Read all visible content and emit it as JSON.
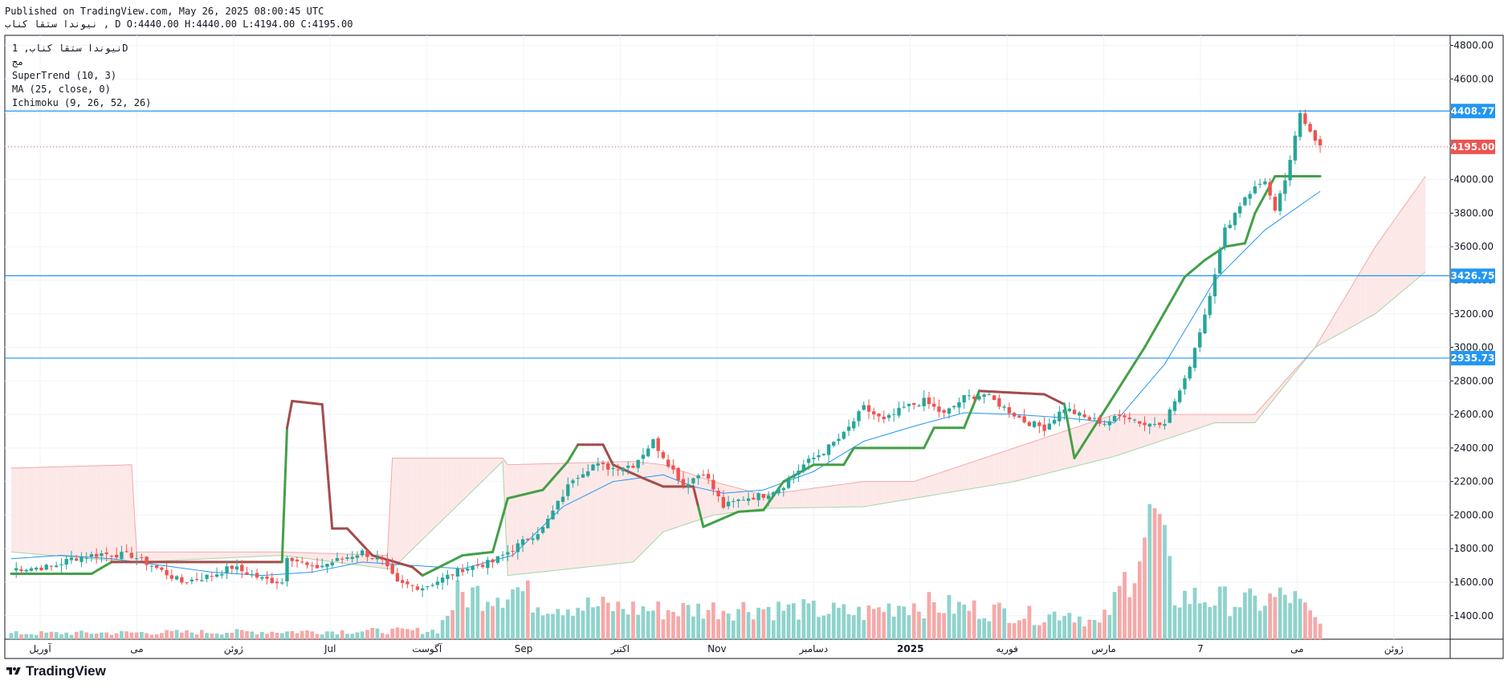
{
  "header": {
    "published": "Published on TradingView.com, May 26, 2025 08:00:45 UTC",
    "ohlc_line": "نیوندا ستقا کناب , D O:4440.00 H:4440.00 L:4194.00 C:4195.00"
  },
  "legend": {
    "symbol": "نیوندا ستقا کناب, 1D",
    "exchange": "مج",
    "supertrend": "SuperTrend (10, 3)",
    "ma": "MA (25, close, 0)",
    "ichimoku": "Ichimoku (9, 26, 52, 26)"
  },
  "brand": {
    "name": "TradingView"
  },
  "colors": {
    "up": "#26a69a",
    "down": "#ef5350",
    "supertrend_up": "#43a047",
    "supertrend_down": "#a34c4c",
    "ma": "#2196f3",
    "hline": "#2196f3",
    "cloud_up": "#e8f5e9",
    "cloud_down": "#fde8e8"
  },
  "chart_data": {
    "type": "candlestick",
    "ylim": [
      1260,
      4860
    ],
    "y_ticks": [
      1400,
      1600,
      1800,
      2000,
      2200,
      2400,
      2600,
      2800,
      3000,
      3200,
      3400,
      3600,
      3800,
      4000,
      4200,
      4400,
      4600,
      4800
    ],
    "x_labels": [
      "آوریل",
      "می",
      "ژوئن",
      "Jul",
      "آگوست",
      "Sep",
      "اکتبر",
      "Nov",
      "دسامبر",
      "2025",
      "فوریه",
      "مارس",
      "7",
      "می",
      "ژوئن"
    ],
    "horizontal_lines": [
      {
        "value": 4408.77,
        "label": "4408.77"
      },
      {
        "value": 3426.75,
        "label": "3426.75"
      },
      {
        "value": 2935.73,
        "label": "2935.73"
      }
    ],
    "last_price": {
      "value": 4195.0,
      "label": "4195.00"
    },
    "close_anchors": [
      [
        0,
        1680
      ],
      [
        8,
        1690
      ],
      [
        12,
        1740
      ],
      [
        18,
        1770
      ],
      [
        24,
        1760
      ],
      [
        28,
        1700
      ],
      [
        34,
        1600
      ],
      [
        40,
        1640
      ],
      [
        44,
        1690
      ],
      [
        50,
        1620
      ],
      [
        54,
        1600
      ],
      [
        55,
        1760
      ],
      [
        60,
        1680
      ],
      [
        64,
        1720
      ],
      [
        70,
        1780
      ],
      [
        74,
        1720
      ],
      [
        77,
        1590
      ],
      [
        82,
        1570
      ],
      [
        86,
        1620
      ],
      [
        90,
        1680
      ],
      [
        96,
        1720
      ],
      [
        100,
        1800
      ],
      [
        106,
        1920
      ],
      [
        112,
        2220
      ],
      [
        116,
        2300
      ],
      [
        120,
        2280
      ],
      [
        124,
        2300
      ],
      [
        128,
        2440
      ],
      [
        134,
        2180
      ],
      [
        138,
        2260
      ],
      [
        142,
        2050
      ],
      [
        146,
        2100
      ],
      [
        150,
        2120
      ],
      [
        154,
        2180
      ],
      [
        158,
        2300
      ],
      [
        162,
        2380
      ],
      [
        166,
        2480
      ],
      [
        170,
        2640
      ],
      [
        174,
        2560
      ],
      [
        178,
        2640
      ],
      [
        182,
        2680
      ],
      [
        186,
        2600
      ],
      [
        190,
        2700
      ],
      [
        194,
        2720
      ],
      [
        198,
        2640
      ],
      [
        202,
        2560
      ],
      [
        206,
        2520
      ],
      [
        210,
        2640
      ],
      [
        214,
        2580
      ],
      [
        218,
        2550
      ],
      [
        222,
        2600
      ],
      [
        226,
        2540
      ],
      [
        230,
        2560
      ],
      [
        234,
        2800
      ],
      [
        238,
        3200
      ],
      [
        242,
        3700
      ],
      [
        246,
        3900
      ],
      [
        250,
        4000
      ],
      [
        252,
        3800
      ],
      [
        255,
        4100
      ],
      [
        257,
        4400
      ],
      [
        261,
        4195
      ]
    ],
    "cloud_anchors": [
      [
        0,
        2280,
        1780
      ],
      [
        24,
        2300,
        1720
      ],
      [
        25,
        1780,
        1720
      ],
      [
        54,
        1780,
        1760
      ],
      [
        75,
        1760,
        1680
      ],
      [
        76,
        2340,
        1680
      ],
      [
        98,
        2340,
        2320
      ],
      [
        99,
        2300,
        1640
      ],
      [
        124,
        2320,
        1720
      ],
      [
        130,
        2300,
        1900
      ],
      [
        140,
        2200,
        2000
      ],
      [
        150,
        2120,
        2040
      ],
      [
        170,
        2200,
        2050
      ],
      [
        180,
        2200,
        2100
      ],
      [
        200,
        2400,
        2200
      ],
      [
        220,
        2600,
        2350
      ],
      [
        240,
        2600,
        2550
      ],
      [
        248,
        2600,
        2550
      ],
      [
        260,
        3000,
        3000
      ],
      [
        272,
        3600,
        3200
      ],
      [
        282,
        4020,
        3450
      ]
    ],
    "supertrend_anchors": [
      [
        0,
        1650
      ],
      [
        16,
        1650
      ],
      [
        20,
        1720
      ],
      [
        54,
        1720
      ],
      [
        55,
        2520
      ],
      [
        56,
        2680
      ],
      [
        62,
        2660
      ],
      [
        64,
        1920
      ],
      [
        67,
        1920
      ],
      [
        72,
        1760
      ],
      [
        80,
        1690
      ],
      [
        82,
        1640
      ],
      [
        90,
        1760
      ],
      [
        96,
        1780
      ],
      [
        99,
        2100
      ],
      [
        106,
        2150
      ],
      [
        111,
        2320
      ],
      [
        113,
        2420
      ],
      [
        118,
        2420
      ],
      [
        120,
        2300
      ],
      [
        126,
        2220
      ],
      [
        130,
        2170
      ],
      [
        136,
        2170
      ],
      [
        138,
        1930
      ],
      [
        145,
        2020
      ],
      [
        150,
        2030
      ],
      [
        154,
        2200
      ],
      [
        160,
        2300
      ],
      [
        166,
        2300
      ],
      [
        168,
        2400
      ],
      [
        182,
        2400
      ],
      [
        184,
        2520
      ],
      [
        190,
        2520
      ],
      [
        193,
        2740
      ],
      [
        206,
        2720
      ],
      [
        210,
        2660
      ],
      [
        212,
        2340
      ],
      [
        226,
        3000
      ],
      [
        234,
        3420
      ],
      [
        238,
        3520
      ],
      [
        242,
        3600
      ],
      [
        246,
        3620
      ],
      [
        248,
        3800
      ],
      [
        252,
        4020
      ],
      [
        261,
        4020
      ]
    ],
    "supertrend_down_ranges": [
      [
        20,
        54
      ],
      [
        55,
        64
      ],
      [
        64,
        82
      ],
      [
        113,
        130
      ],
      [
        130,
        137
      ],
      [
        193,
        210
      ]
    ],
    "ma_anchors": [
      [
        0,
        1740
      ],
      [
        10,
        1760
      ],
      [
        20,
        1740
      ],
      [
        30,
        1700
      ],
      [
        40,
        1660
      ],
      [
        50,
        1640
      ],
      [
        60,
        1660
      ],
      [
        70,
        1720
      ],
      [
        80,
        1700
      ],
      [
        90,
        1680
      ],
      [
        100,
        1760
      ],
      [
        110,
        2050
      ],
      [
        120,
        2200
      ],
      [
        130,
        2240
      ],
      [
        136,
        2170
      ],
      [
        142,
        2130
      ],
      [
        150,
        2150
      ],
      [
        160,
        2260
      ],
      [
        170,
        2440
      ],
      [
        180,
        2530
      ],
      [
        190,
        2610
      ],
      [
        200,
        2600
      ],
      [
        210,
        2580
      ],
      [
        220,
        2550
      ],
      [
        230,
        2900
      ],
      [
        240,
        3400
      ],
      [
        250,
        3700
      ],
      [
        261,
        3930
      ]
    ],
    "volume_anchors": [
      [
        0,
        4
      ],
      [
        85,
        6
      ],
      [
        89,
        30
      ],
      [
        101,
        35
      ],
      [
        105,
        25
      ],
      [
        130,
        20
      ],
      [
        148,
        22
      ],
      [
        170,
        18
      ],
      [
        178,
        25
      ],
      [
        196,
        20
      ],
      [
        206,
        15
      ],
      [
        210,
        20
      ],
      [
        217,
        10
      ],
      [
        220,
        25
      ],
      [
        228,
        85
      ],
      [
        232,
        30
      ],
      [
        248,
        25
      ],
      [
        255,
        30
      ],
      [
        261,
        10
      ]
    ],
    "bar_count": 262
  }
}
